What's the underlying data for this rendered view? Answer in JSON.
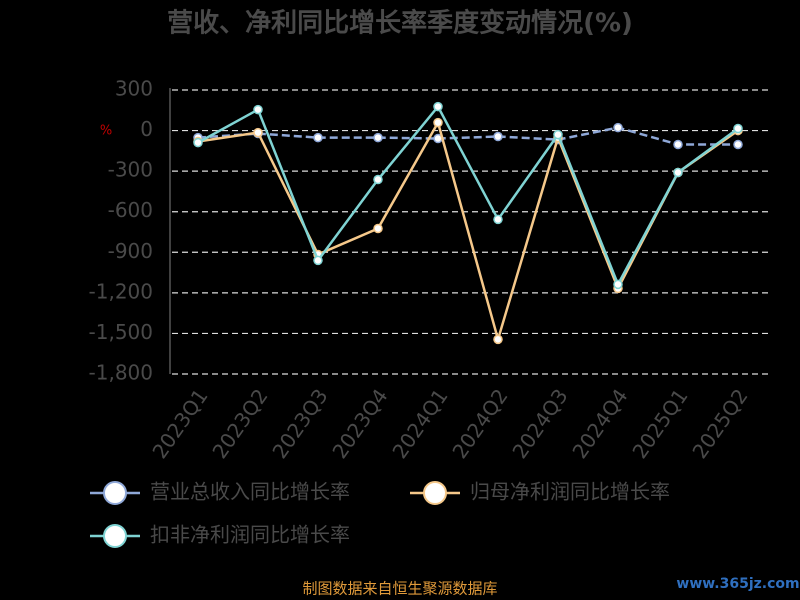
{
  "chart_data": {
    "type": "line",
    "title": "营收、净利同比增长率季度变动情况(%)",
    "y_unit": "%",
    "categories": [
      "2023Q1",
      "2023Q2",
      "2023Q3",
      "2023Q4",
      "2024Q1",
      "2024Q2",
      "2024Q3",
      "2024Q4",
      "2025Q1",
      "2025Q2"
    ],
    "series": [
      {
        "name": "营业总收入同比增长率",
        "color": "#8fa8d8",
        "dashed": true,
        "values": [
          -52,
          -22,
          -52,
          -52,
          -59,
          -44,
          -67,
          22,
          -103,
          -103
        ]
      },
      {
        "name": "归母净利润同比增长率",
        "color": "#f5c88a",
        "dashed": false,
        "values": [
          -81,
          -15,
          -916,
          -724,
          59,
          -1544,
          -52,
          -1167,
          -310,
          0
        ]
      },
      {
        "name": "扣非净利润同比增长率",
        "color": "#7fd3d3",
        "dashed": false,
        "values": [
          -89,
          155,
          -960,
          -362,
          177,
          -657,
          -30,
          -1137,
          -310,
          15
        ]
      }
    ],
    "ylim": [
      -1800,
      300
    ],
    "yticks": [
      300,
      0,
      -300,
      -600,
      -900,
      {
        "value": -1200,
        "label": "-1,200"
      },
      {
        "value": -1500,
        "label": "-1,500"
      },
      {
        "value": -1800,
        "label": "-1,800"
      }
    ],
    "grid": true,
    "source": "制图数据来自恒生聚源数据库",
    "watermark": "www.365jz.com"
  }
}
